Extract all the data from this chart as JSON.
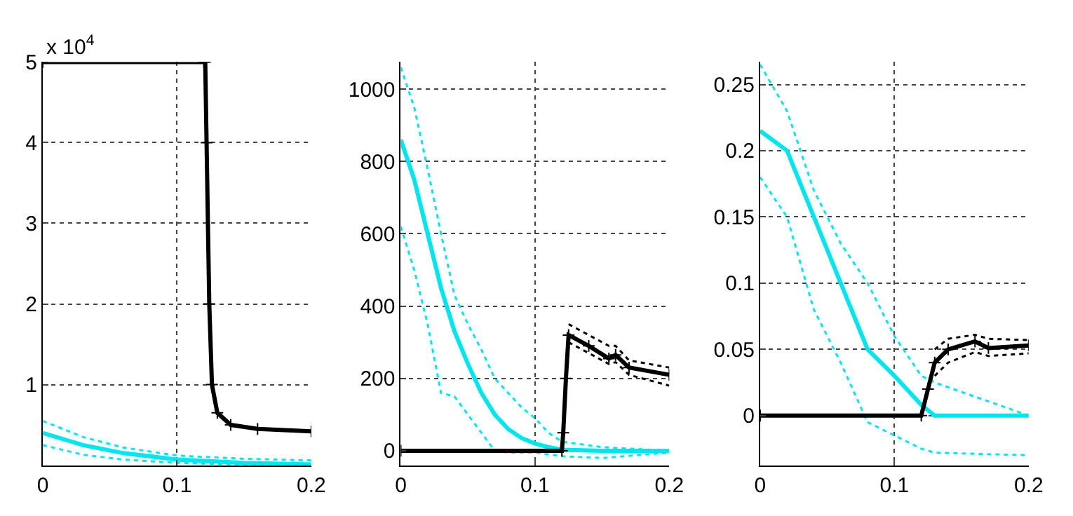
{
  "chart_data": [
    {
      "type": "line",
      "xlim": [
        0,
        0.2
      ],
      "xticks": [
        0,
        0.1,
        0.2
      ],
      "ylim": [
        0,
        5
      ],
      "yticks": [
        1,
        2,
        3,
        4,
        5
      ],
      "grid": true,
      "annotations": [
        "x 10$^{4}$"
      ],
      "series": [
        {
          "color": "#00e5ee",
          "x": [
            0,
            0.03,
            0.06,
            0.1,
            0.15,
            0.2
          ],
          "values": [
            0.4,
            0.25,
            0.15,
            0.07,
            0.03,
            0.01
          ]
        },
        {
          "color": "#00e5ee",
          "line_style": "dotted",
          "x": [
            0,
            0.03,
            0.06,
            0.1,
            0.15,
            0.2
          ],
          "values": [
            0.25,
            0.13,
            0.07,
            0.03,
            0.005,
            0
          ]
        },
        {
          "color": "#00e5ee",
          "line_style": "dotted",
          "x": [
            0,
            0.03,
            0.06,
            0.1,
            0.15,
            0.2
          ],
          "values": [
            0.55,
            0.35,
            0.22,
            0.12,
            0.08,
            0.06
          ]
        },
        {
          "color": "#000000",
          "marker": "cross",
          "x": [
            0,
            0.12,
            0.121,
            0.122,
            0.124,
            0.126,
            0.13,
            0.14,
            0.16,
            0.2
          ],
          "values": [
            5,
            5,
            5,
            4,
            2,
            1,
            0.65,
            0.5,
            0.45,
            0.42
          ]
        }
      ]
    },
    {
      "type": "line",
      "xlim": [
        0,
        0.2
      ],
      "xticks": [
        0,
        0.1,
        0.2
      ],
      "ylim": [
        -40,
        1075
      ],
      "yticks": [
        0,
        200,
        400,
        600,
        800,
        1000
      ],
      "grid": true,
      "series": [
        {
          "color": "#00e5ee",
          "x": [
            0,
            0.01,
            0.02,
            0.03,
            0.04,
            0.05,
            0.06,
            0.07,
            0.08,
            0.09,
            0.1,
            0.11,
            0.12,
            0.15,
            0.2
          ],
          "values": [
            860,
            750,
            600,
            450,
            330,
            240,
            160,
            100,
            60,
            35,
            20,
            10,
            3,
            0,
            0
          ]
        },
        {
          "color": "#00e5ee",
          "line_style": "dotted",
          "x": [
            0,
            0.01,
            0.02,
            0.03,
            0.04,
            0.05,
            0.06,
            0.07,
            0.08,
            0.09,
            0.1,
            0.11,
            0.12,
            0.15,
            0.2
          ],
          "values": [
            620,
            500,
            350,
            160,
            150,
            100,
            50,
            0,
            -5,
            -5,
            -5,
            -10,
            -15,
            -20,
            -5
          ]
        },
        {
          "color": "#00e5ee",
          "line_style": "dotted",
          "x": [
            0,
            0.01,
            0.02,
            0.03,
            0.04,
            0.05,
            0.06,
            0.07,
            0.08,
            0.09,
            0.1,
            0.11,
            0.12,
            0.15,
            0.2
          ],
          "values": [
            1060,
            950,
            780,
            600,
            430,
            350,
            280,
            200,
            160,
            120,
            90,
            50,
            25,
            10,
            0
          ]
        },
        {
          "color": "#000000",
          "marker": "cross",
          "x": [
            0,
            0.12,
            0.121,
            0.123,
            0.125,
            0.14,
            0.155,
            0.16,
            0.17,
            0.2
          ],
          "values": [
            0,
            0,
            50,
            200,
            320,
            290,
            255,
            265,
            230,
            210
          ]
        },
        {
          "color": "#000000",
          "line_style": "dotted",
          "x": [
            0.125,
            0.14,
            0.155,
            0.16,
            0.17,
            0.2
          ],
          "values": [
            300,
            270,
            240,
            245,
            210,
            180
          ]
        },
        {
          "color": "#000000",
          "line_style": "dotted",
          "x": [
            0.125,
            0.14,
            0.155,
            0.16,
            0.17,
            0.2
          ],
          "values": [
            350,
            320,
            290,
            290,
            250,
            230
          ]
        }
      ]
    },
    {
      "type": "line",
      "xlim": [
        0,
        0.2
      ],
      "xticks": [
        0,
        0.1,
        0.2
      ],
      "ylim": [
        -0.0375,
        0.267
      ],
      "yticks": [
        0,
        0.05,
        0.1,
        0.15,
        0.2,
        0.25
      ],
      "grid": true,
      "series": [
        {
          "color": "#00e5ee",
          "x": [
            0,
            0.02,
            0.04,
            0.06,
            0.08,
            0.1,
            0.12,
            0.13,
            0.2
          ],
          "values": [
            0.215,
            0.2,
            0.15,
            0.1,
            0.05,
            0.03,
            0.008,
            0,
            0
          ]
        },
        {
          "color": "#00e5ee",
          "line_style": "dotted",
          "x": [
            0,
            0.02,
            0.04,
            0.06,
            0.08,
            0.1,
            0.12,
            0.13,
            0.2
          ],
          "values": [
            0.18,
            0.15,
            0.08,
            0.04,
            -0.005,
            -0.015,
            -0.025,
            -0.028,
            -0.03
          ]
        },
        {
          "color": "#00e5ee",
          "line_style": "dotted",
          "x": [
            0,
            0.02,
            0.04,
            0.06,
            0.08,
            0.1,
            0.12,
            0.13,
            0.2
          ],
          "values": [
            0.265,
            0.23,
            0.17,
            0.13,
            0.1,
            0.06,
            0.03,
            0.025,
            0
          ]
        },
        {
          "color": "#000000",
          "marker": "cross",
          "x": [
            0,
            0.12,
            0.125,
            0.13,
            0.14,
            0.16,
            0.17,
            0.2
          ],
          "values": [
            0,
            0,
            0.02,
            0.04,
            0.05,
            0.056,
            0.051,
            0.053
          ]
        },
        {
          "color": "#000000",
          "line_style": "dotted",
          "x": [
            0.13,
            0.14,
            0.16,
            0.17,
            0.2
          ],
          "values": [
            0.03,
            0.04,
            0.048,
            0.045,
            0.047
          ]
        },
        {
          "color": "#000000",
          "line_style": "dotted",
          "x": [
            0.13,
            0.14,
            0.16,
            0.17,
            0.2
          ],
          "values": [
            0.05,
            0.058,
            0.061,
            0.058,
            0.057
          ]
        }
      ]
    }
  ]
}
